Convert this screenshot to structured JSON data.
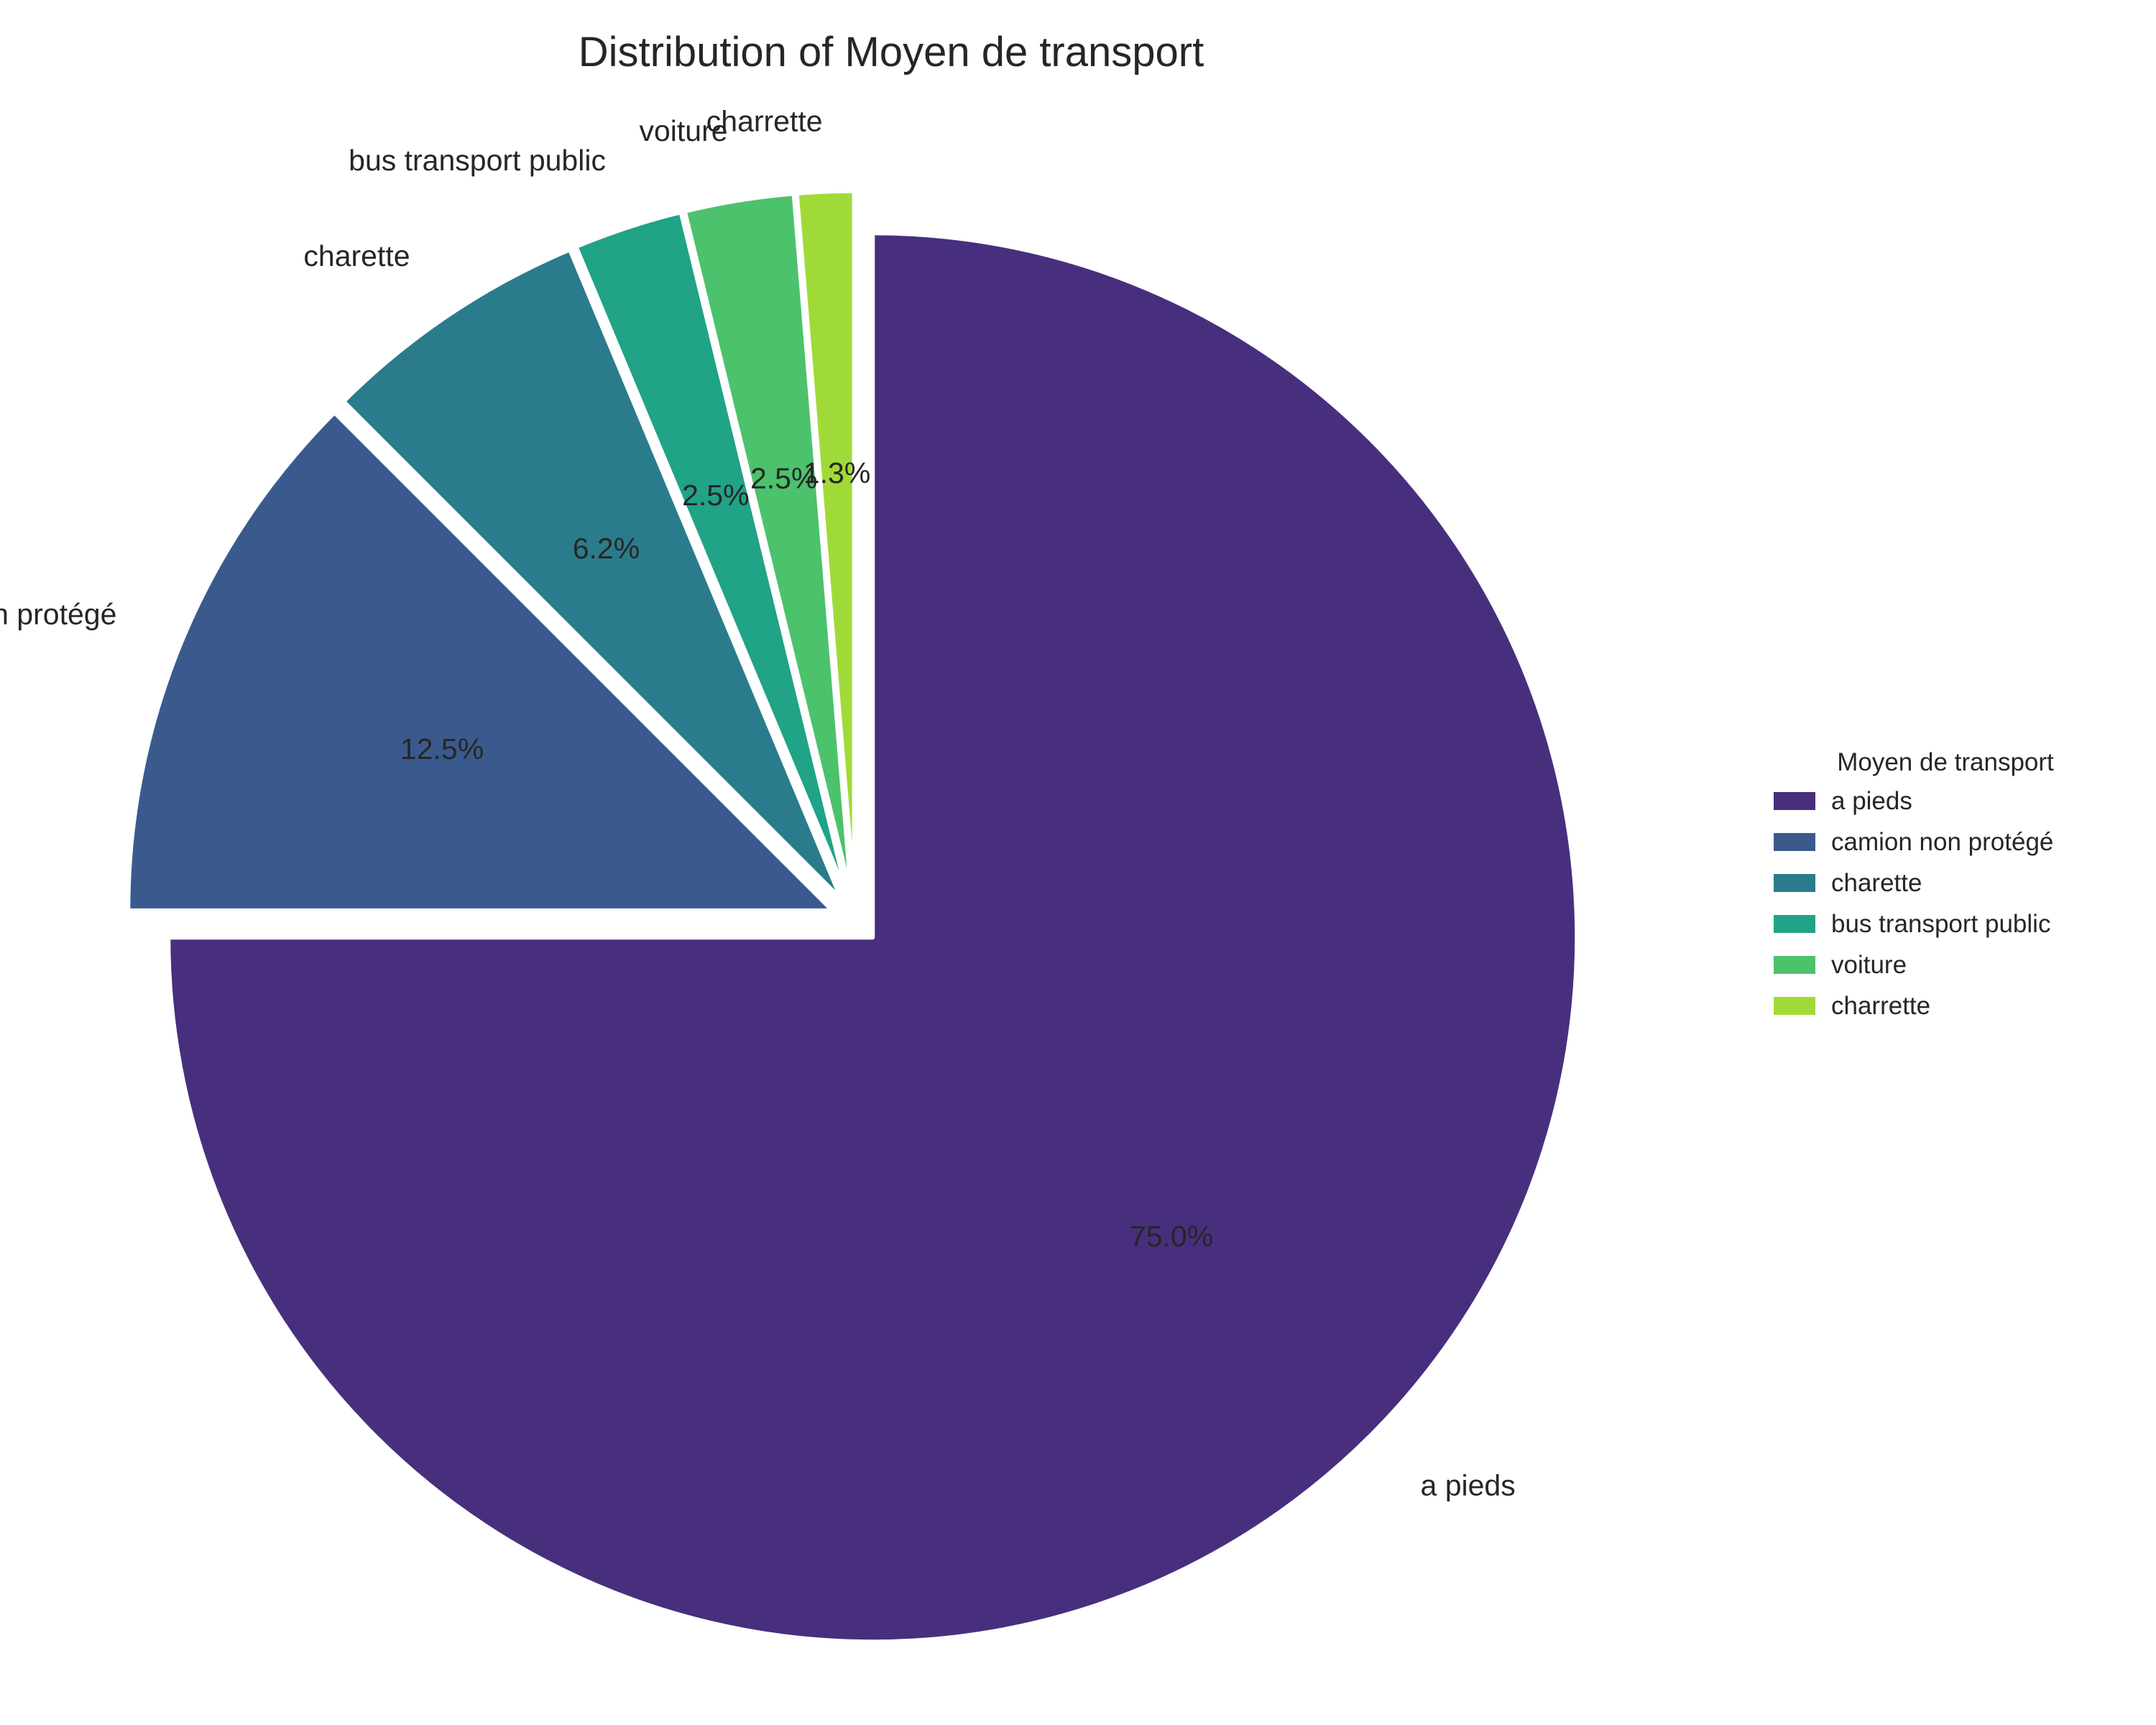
{
  "chart_data": {
    "type": "pie",
    "title": "Distribution of Moyen de transport",
    "categories": [
      "a pieds",
      "camion non protégé",
      "charette",
      "bus transport public",
      "voiture",
      "charrette"
    ],
    "values": [
      75.0,
      12.5,
      6.2,
      2.5,
      2.5,
      1.3
    ],
    "percent_labels": [
      "75.0%",
      "12.5%",
      "6.2%",
      "2.5%",
      "2.5%",
      "1.3%"
    ],
    "colors": [
      "#472f7d",
      "#3a5a8d",
      "#2a7c8c",
      "#20a386",
      "#4cc26c",
      "#a0da39"
    ],
    "start_angle_deg": 90,
    "direction": "clockwise",
    "exploded": true,
    "legend": {
      "title": "Moyen de transport",
      "placement": "right",
      "entries": [
        "a pieds",
        "camion non protégé",
        "charette",
        "bus transport public",
        "voiture",
        "charrette"
      ]
    }
  }
}
